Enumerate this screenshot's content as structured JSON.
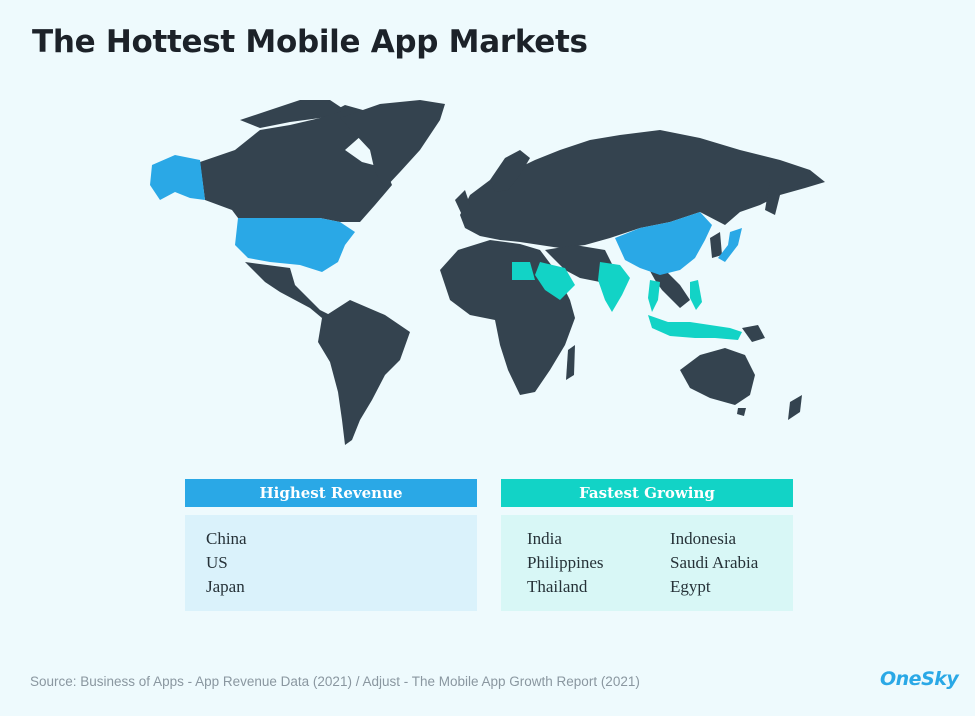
{
  "title": "The Hottest Mobile App Markets",
  "colors": {
    "land": "#34434f",
    "highest_revenue": "#2aa8e6",
    "fastest_growing": "#12d3c6",
    "background": "#eefafd"
  },
  "map": {
    "highlighted_highest_revenue": [
      "United States",
      "Alaska",
      "China",
      "Japan"
    ],
    "highlighted_fastest_growing": [
      "India",
      "Indonesia",
      "Philippines",
      "Saudi Arabia",
      "Thailand",
      "Egypt"
    ]
  },
  "highest_revenue": {
    "header": "Highest Revenue",
    "items": [
      "China",
      "US",
      "Japan"
    ]
  },
  "fastest_growing": {
    "header": "Fastest Growing",
    "col1": [
      "India",
      "Philippines",
      "Thailand"
    ],
    "col2": [
      "Indonesia",
      "Saudi Arabia",
      "Egypt"
    ]
  },
  "source": "Source: Business of Apps - App Revenue Data (2021) / Adjust - The Mobile App Growth Report (2021)",
  "logo": "OneSky"
}
